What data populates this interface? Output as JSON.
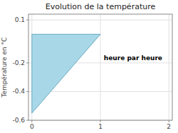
{
  "chart_data": {
    "type": "area",
    "title": "Evolution de la température",
    "ylabel": "Température en °C",
    "x": [
      0,
      0,
      1
    ],
    "values": [
      0,
      -0.55,
      0
    ],
    "color": "#a8d8e8",
    "xlim": [
      -0.05,
      2.05
    ],
    "ylim": [
      -0.6,
      0.14
    ],
    "xticks": [
      0,
      1,
      2
    ],
    "yticks": [
      0.1,
      -0.2,
      -0.4,
      -0.6
    ],
    "grid": true,
    "annotations": [
      {
        "text": "heure par heure",
        "x": 1.05,
        "y": -0.15
      }
    ]
  }
}
